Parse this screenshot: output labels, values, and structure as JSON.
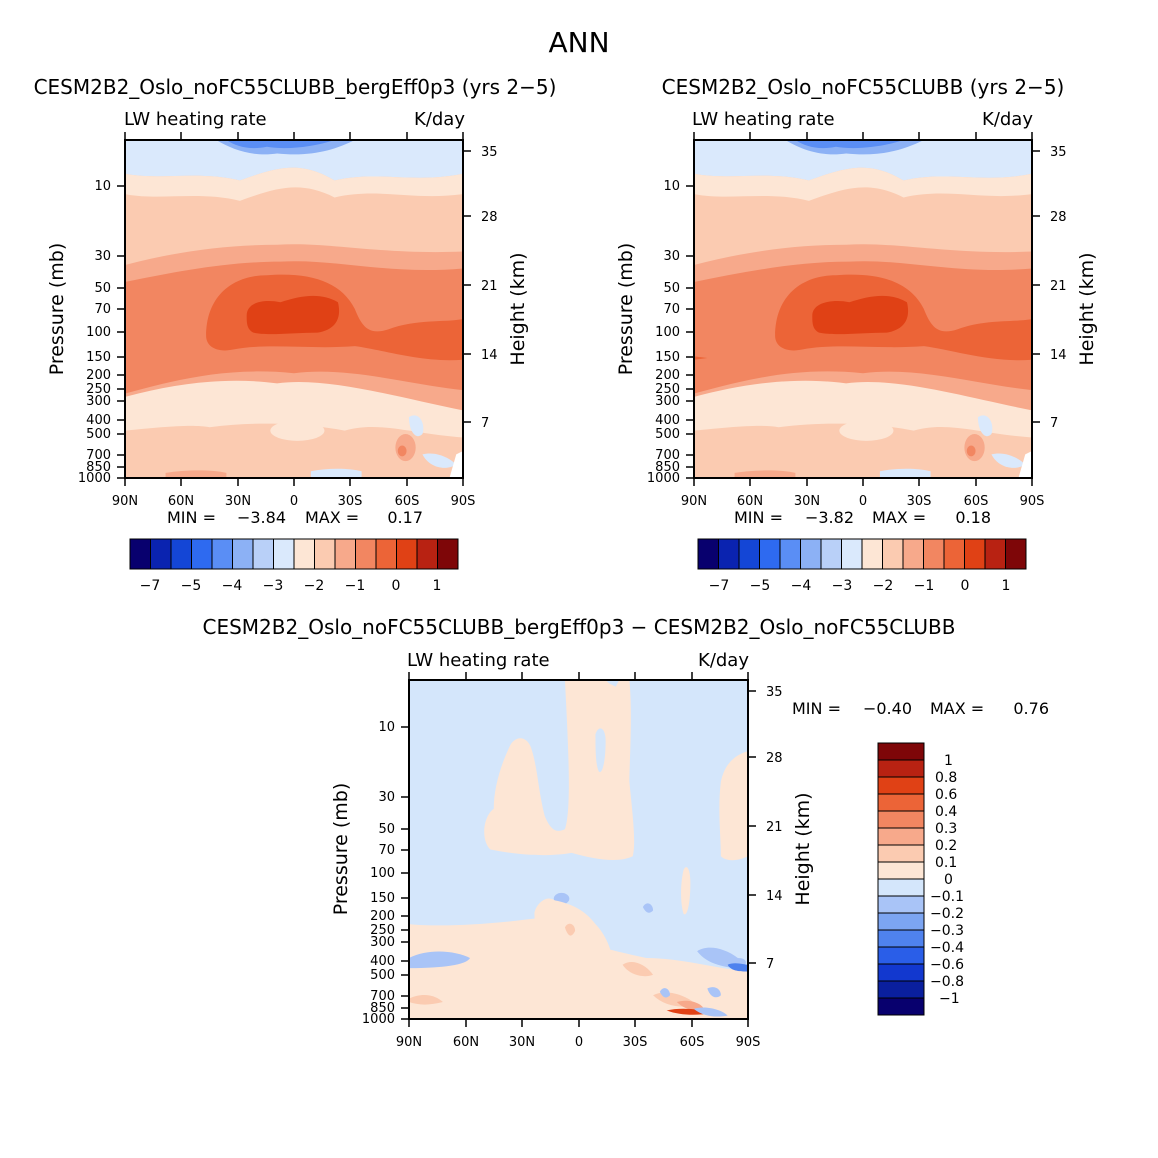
{
  "figure": {
    "title": "ANN"
  },
  "colors": {
    "top_cmap": [
      "#08006e",
      "#0a23b0",
      "#1446d6",
      "#2e6af0",
      "#5a8ef5",
      "#8cb1f5",
      "#b9d0f8",
      "#dae9fc",
      "#fde6d5",
      "#fbcbb1",
      "#f7a98b",
      "#f28661",
      "#ec6437",
      "#e04115",
      "#b82212",
      "#7e0608"
    ],
    "diff_cmap": [
      "#08006e",
      "#0a1f9e",
      "#1238cf",
      "#2a5ee8",
      "#4f82ee",
      "#7ca5f2",
      "#a9c4f7",
      "#d4e6fb",
      "#fde6d5",
      "#fbcbb1",
      "#f7a98b",
      "#f28661",
      "#ec6437",
      "#e04115",
      "#b82212",
      "#7e0608"
    ]
  },
  "chart_data": [
    {
      "type": "heatmap",
      "title": "CESM2B2_Oslo_noFC55CLUBB_bergEff0p3 (yrs 2−5)",
      "subtitle_left": "LW heating rate",
      "subtitle_right": "K/day",
      "ylabel": "Pressure (mb)",
      "ylabel_right": "Height (km)",
      "x_ticks": [
        "90N",
        "60N",
        "30N",
        "0",
        "30S",
        "60S",
        "90S"
      ],
      "y_ticks": [
        "10",
        "30",
        "50",
        "70",
        "100",
        "150",
        "200",
        "250",
        "300",
        "400",
        "500",
        "700",
        "850",
        "1000"
      ],
      "y_ticks_right": [
        "35",
        "28",
        "21",
        "14",
        "7"
      ],
      "stats": {
        "min_label": "MIN =",
        "min": "−3.84",
        "max_label": "MAX =",
        "max": "0.17"
      },
      "colorbar_labels": [
        "−7",
        "−5",
        "−4",
        "−3",
        "−2",
        "−1",
        "0",
        "1"
      ]
    },
    {
      "type": "heatmap",
      "title": "CESM2B2_Oslo_noFC55CLUBB (yrs 2−5)",
      "subtitle_left": "LW heating rate",
      "subtitle_right": "K/day",
      "ylabel": "Pressure (mb)",
      "ylabel_right": "Height (km)",
      "x_ticks": [
        "90N",
        "60N",
        "30N",
        "0",
        "30S",
        "60S",
        "90S"
      ],
      "y_ticks": [
        "10",
        "30",
        "50",
        "70",
        "100",
        "150",
        "200",
        "250",
        "300",
        "400",
        "500",
        "700",
        "850",
        "1000"
      ],
      "y_ticks_right": [
        "35",
        "28",
        "21",
        "14",
        "7"
      ],
      "stats": {
        "min_label": "MIN =",
        "min": "−3.82",
        "max_label": "MAX =",
        "max": "0.18"
      },
      "colorbar_labels": [
        "−7",
        "−5",
        "−4",
        "−3",
        "−2",
        "−1",
        "0",
        "1"
      ]
    },
    {
      "type": "heatmap",
      "title": "CESM2B2_Oslo_noFC55CLUBB_bergEff0p3 − CESM2B2_Oslo_noFC55CLUBB",
      "subtitle_left": "LW heating rate",
      "subtitle_right": "K/day",
      "ylabel": "Pressure (mb)",
      "ylabel_right": "Height (km)",
      "x_ticks": [
        "90N",
        "60N",
        "30N",
        "0",
        "30S",
        "60S",
        "90S"
      ],
      "y_ticks": [
        "10",
        "30",
        "50",
        "70",
        "100",
        "150",
        "200",
        "250",
        "300",
        "400",
        "500",
        "700",
        "850",
        "1000"
      ],
      "y_ticks_right": [
        "35",
        "28",
        "21",
        "14",
        "7"
      ],
      "stats": {
        "min_label": "MIN =",
        "min": "−0.40",
        "max_label": "MAX =",
        "max": "0.76"
      },
      "colorbar_labels": [
        "1",
        "0.8",
        "0.6",
        "0.4",
        "0.3",
        "0.2",
        "0.1",
        "0",
        "−0.1",
        "−0.2",
        "−0.3",
        "−0.4",
        "−0.6",
        "−0.8",
        "−1"
      ]
    }
  ]
}
